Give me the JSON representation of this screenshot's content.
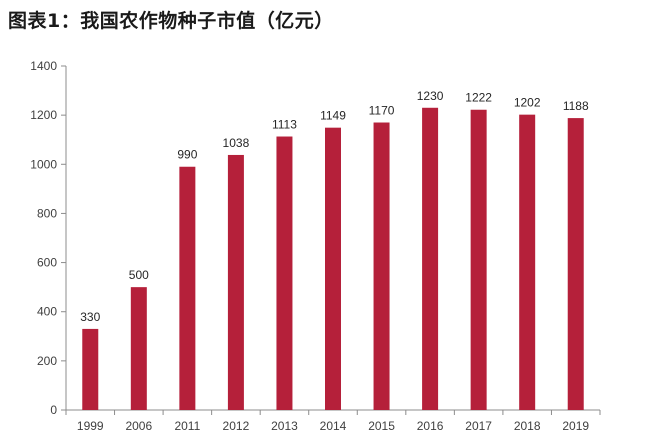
{
  "chart_data": {
    "type": "bar",
    "title": "图表1：我国农作物种子市值（亿元）",
    "xlabel": "",
    "ylabel": "",
    "categories": [
      "1999",
      "2006",
      "2011",
      "2012",
      "2013",
      "2014",
      "2015",
      "2016",
      "2017",
      "2018",
      "2019"
    ],
    "values": [
      330,
      500,
      990,
      1038,
      1113,
      1149,
      1170,
      1230,
      1222,
      1202,
      1188
    ],
    "ylim": [
      0,
      1400
    ],
    "yticks": [
      0,
      200,
      400,
      600,
      800,
      1000,
      1200,
      1400
    ],
    "grid": false,
    "legend": "none",
    "colors": {
      "bar": "#B5203A",
      "axis": "#8c8c8c"
    }
  }
}
